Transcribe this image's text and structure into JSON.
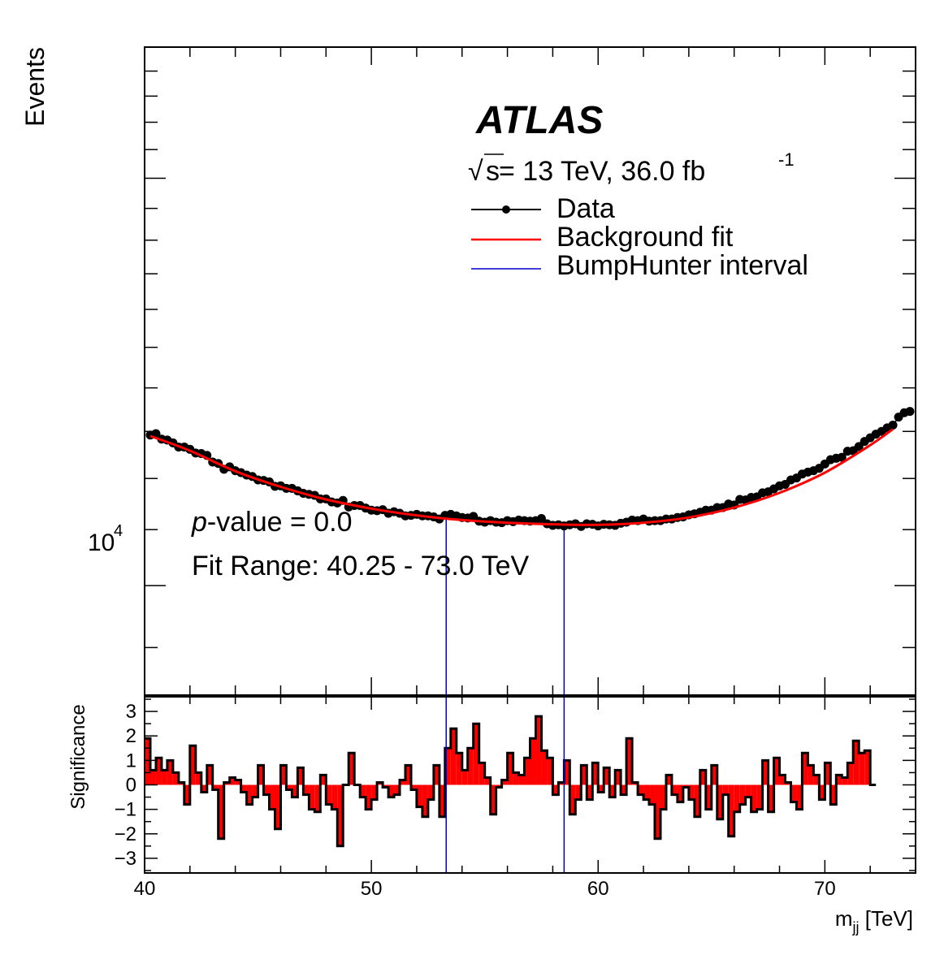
{
  "colors": {
    "data": "#000000",
    "fit": "#ff0000",
    "interval": "#0000cc",
    "sig_fill": "#ff0000",
    "sig_edge": "#000000",
    "frame": "#000000"
  },
  "labels": {
    "experiment": "ATLAS",
    "energy_prefix": "√",
    "energy_s": "s",
    "energy_main": " = 13 TeV, 36.0 fb",
    "energy_sup": "-1",
    "pvalue_italic": "p",
    "pvalue_rest": "-value = 0.0",
    "fit_range": "Fit Range: 40.25 - 73.0 TeV",
    "ytick_1e4_base": "10",
    "ytick_1e4_exp": "4"
  },
  "chart_data": [
    {
      "type": "line",
      "ylabel": "Events",
      "yscale": "log",
      "xlim": [
        40,
        74
      ],
      "ylim": [
        8300,
        25000
      ],
      "legend_position": "top-right",
      "legend": [
        "Data",
        "Background fit",
        "BumpHunter interval"
      ],
      "bumphunter_interval": [
        53.3,
        58.5
      ],
      "fit_range": [
        40.25,
        73.0
      ],
      "series": [
        {
          "name": "Data",
          "x": [
            40.25,
            40.5,
            40.75,
            41.0,
            41.25,
            41.5,
            41.75,
            42.0,
            42.25,
            42.5,
            42.75,
            43.0,
            43.25,
            43.5,
            43.75,
            44.0,
            44.25,
            44.5,
            44.75,
            45.0,
            45.25,
            45.5,
            45.75,
            46.0,
            46.25,
            46.5,
            46.75,
            47.0,
            47.25,
            47.5,
            47.75,
            48.0,
            48.25,
            48.5,
            48.75,
            49.0,
            49.25,
            49.5,
            49.75,
            50.0,
            50.25,
            50.5,
            50.75,
            51.0,
            51.25,
            51.5,
            51.75,
            52.0,
            52.25,
            52.5,
            52.75,
            53.0,
            53.25,
            53.5,
            53.75,
            54.0,
            54.25,
            54.5,
            54.75,
            55.0,
            55.25,
            55.5,
            55.75,
            56.0,
            56.25,
            56.5,
            56.75,
            57.0,
            57.25,
            57.5,
            57.75,
            58.0,
            58.25,
            58.5,
            58.75,
            59.0,
            59.25,
            59.5,
            59.75,
            60.0,
            60.25,
            60.5,
            60.75,
            61.0,
            61.25,
            61.5,
            61.75,
            62.0,
            62.25,
            62.5,
            62.75,
            63.0,
            63.25,
            63.5,
            63.75,
            64.0,
            64.25,
            64.5,
            64.75,
            65.0,
            65.25,
            65.5,
            65.75,
            66.0,
            66.25,
            66.5,
            66.75,
            67.0,
            67.25,
            67.5,
            67.75,
            68.0,
            68.25,
            68.5,
            68.75,
            69.0,
            69.25,
            69.5,
            69.75,
            70.0,
            70.25,
            70.5,
            70.75,
            71.0,
            71.25,
            71.5,
            71.75,
            72.0,
            72.25,
            72.5,
            72.75,
            73.0,
            73.25,
            73.5,
            73.75
          ],
          "y": [
            12920,
            12950,
            12830,
            12810,
            12750,
            12660,
            12660,
            12610,
            12530,
            12520,
            12480,
            12340,
            12310,
            12190,
            12240,
            12160,
            12120,
            12070,
            12040,
            11970,
            11960,
            11930,
            11840,
            11850,
            11800,
            11800,
            11750,
            11700,
            11680,
            11660,
            11590,
            11590,
            11530,
            11510,
            11560,
            11430,
            11460,
            11460,
            11410,
            11370,
            11360,
            11380,
            11310,
            11340,
            11310,
            11260,
            11270,
            11290,
            11260,
            11260,
            11240,
            11200,
            11270,
            11290,
            11260,
            11230,
            11220,
            11250,
            11160,
            11140,
            11170,
            11140,
            11130,
            11170,
            11150,
            11180,
            11170,
            11160,
            11170,
            11210,
            11110,
            11080,
            11090,
            11070,
            11090,
            11110,
            11060,
            11110,
            11100,
            11070,
            11100,
            11090,
            11080,
            11120,
            11140,
            11180,
            11170,
            11200,
            11160,
            11170,
            11170,
            11200,
            11200,
            11230,
            11240,
            11280,
            11300,
            11330,
            11370,
            11370,
            11420,
            11420,
            11490,
            11470,
            11580,
            11570,
            11620,
            11630,
            11710,
            11730,
            11790,
            11850,
            11880,
            11970,
            12010,
            12090,
            12130,
            12160,
            12210,
            12300,
            12390,
            12420,
            12440,
            12570,
            12580,
            12670,
            12780,
            12860,
            12940,
            13000,
            13080,
            13140,
            13320,
            13420,
            13450
          ]
        },
        {
          "name": "Background fit",
          "x": [
            40.25,
            42.0,
            44.0,
            46.0,
            48.0,
            50.0,
            52.0,
            54.0,
            56.0,
            58.0,
            60.0,
            62.0,
            64.0,
            66.0,
            68.0,
            70.0,
            72.0,
            73.0
          ],
          "y": [
            12900,
            12580,
            12150,
            11830,
            11580,
            11400,
            11270,
            11180,
            11130,
            11100,
            11090,
            11130,
            11230,
            11420,
            11710,
            12120,
            12700,
            13050
          ]
        }
      ]
    },
    {
      "type": "bar",
      "ylabel": "Significance",
      "xlabel_main": "m",
      "xlabel_sub": "jj",
      "xlabel_unit": " [TeV]",
      "xlim": [
        40,
        74
      ],
      "ylim": [
        -3.6,
        3.6
      ],
      "xticks": [
        40,
        50,
        60,
        70
      ],
      "yticks": [
        3,
        2,
        1,
        0,
        -1,
        -2,
        -3
      ],
      "bin_width": 0.25,
      "bin_start": 40.0,
      "values": [
        1.9,
        0.6,
        1.1,
        0.6,
        1.0,
        0.5,
        0.1,
        -0.8,
        1.6,
        0.5,
        -0.3,
        0.8,
        -0.2,
        -2.2,
        0.1,
        0.3,
        0.2,
        -0.3,
        -0.8,
        -0.5,
        0.8,
        -0.4,
        -1.0,
        -1.8,
        0.8,
        -0.2,
        -0.5,
        0.7,
        -0.4,
        -1.0,
        -1.1,
        0.4,
        -0.8,
        -1.0,
        -2.5,
        0.0,
        1.3,
        0.0,
        -0.5,
        -1.0,
        -0.6,
        0.1,
        -0.1,
        -0.5,
        -0.4,
        0.2,
        0.8,
        -0.2,
        -0.9,
        -1.3,
        -0.6,
        0.8,
        -1.3,
        1.5,
        2.3,
        1.3,
        0.6,
        1.5,
        2.5,
        0.9,
        0.3,
        -1.2,
        -0.1,
        0.2,
        1.3,
        0.5,
        0.4,
        1.1,
        1.9,
        2.8,
        1.4,
        1.1,
        -0.4,
        0.1,
        1.0,
        -1.2,
        -0.6,
        0.8,
        -0.6,
        0.9,
        -0.3,
        0.7,
        -0.5,
        0.6,
        -0.4,
        1.9,
        0.1,
        -0.4,
        -0.6,
        -0.8,
        -2.2,
        -1.0,
        0.4,
        -0.4,
        -0.7,
        -0.1,
        -0.6,
        -1.3,
        0.6,
        -1.0,
        0.8,
        -1.4,
        -0.4,
        -2.1,
        -1.1,
        -0.8,
        -0.5,
        -1.1,
        -1.0,
        1.0,
        -1.1,
        1.1,
        0.4,
        0.1,
        -0.7,
        -1.0,
        1.3,
        0.8,
        0.4,
        -0.6,
        0.9,
        -0.8,
        0.4,
        0.3,
        0.9,
        1.8,
        1.3,
        1.4,
        0.0
      ]
    }
  ]
}
